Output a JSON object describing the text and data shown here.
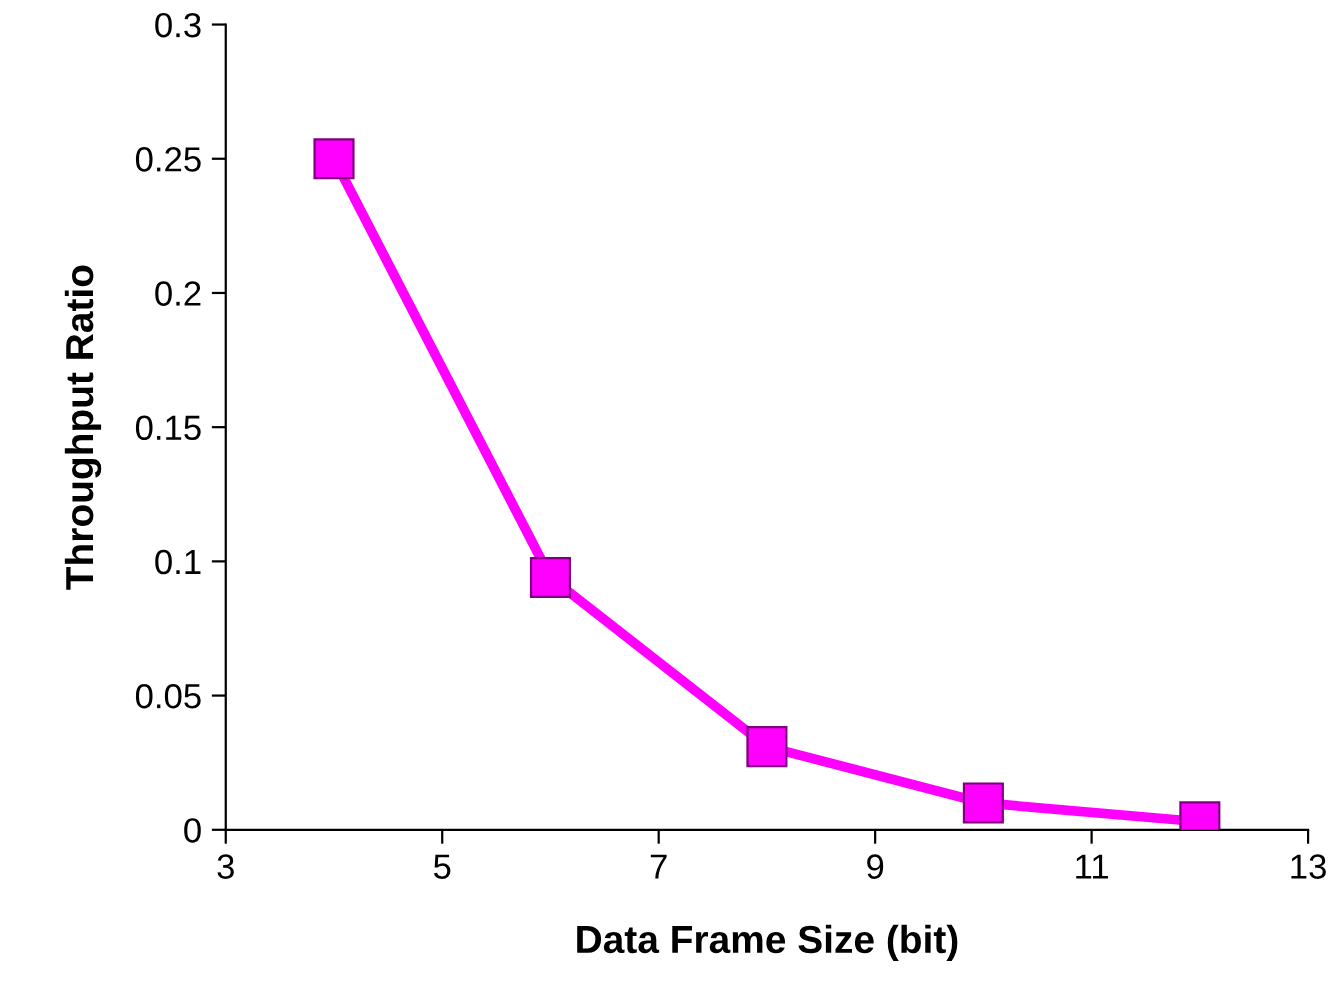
{
  "chart_data": {
    "type": "line",
    "xlabel": "Data Frame Size (bit)",
    "ylabel": "Throughput Ratio",
    "x": [
      4,
      6,
      8,
      10,
      12
    ],
    "series": [
      {
        "color": "#ff00ff",
        "values": [
          0.25,
          0.094,
          0.031,
          0.01,
          0.003
        ]
      }
    ],
    "xlim": [
      3,
      13
    ],
    "xticks": [
      3,
      5,
      7,
      9,
      11,
      13
    ],
    "ylim": [
      0,
      0.3
    ],
    "yticks": [
      0,
      0.05,
      0.1,
      0.15,
      0.2,
      0.25,
      0.3
    ],
    "grid": false,
    "legend": false,
    "marker": "square",
    "line_style": "solid"
  }
}
